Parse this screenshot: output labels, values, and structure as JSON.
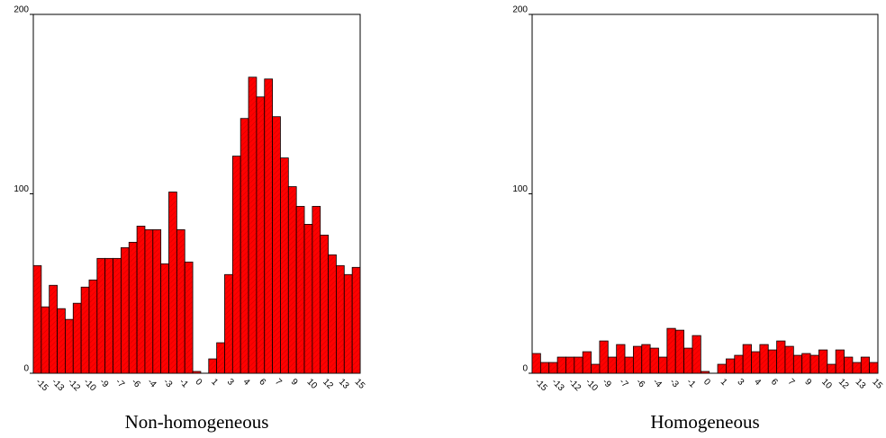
{
  "chart_data": [
    {
      "type": "bar",
      "title": "Non-homogeneous",
      "color": "#ff0000",
      "categories": [
        "-15",
        null,
        "-13",
        null,
        "-12",
        null,
        "-10",
        null,
        "-9",
        null,
        "-7",
        null,
        "-6",
        null,
        "-4",
        null,
        "-3",
        null,
        "-1",
        null,
        "0",
        null,
        "1",
        null,
        "3",
        null,
        "4",
        null,
        "6",
        null,
        "7",
        null,
        "9",
        null,
        "10",
        null,
        "12",
        null,
        "13",
        null,
        "15"
      ],
      "values": [
        60,
        37,
        49,
        36,
        30,
        39,
        48,
        52,
        64,
        64,
        64,
        70,
        73,
        82,
        80,
        80,
        61,
        101,
        80,
        62,
        1,
        0,
        8,
        17,
        55,
        121,
        142,
        165,
        154,
        164,
        143,
        120,
        104,
        93,
        83,
        93,
        77,
        66,
        60,
        55,
        59
      ],
      "ylim": [
        0,
        200
      ],
      "yticks": [
        0,
        100,
        200
      ]
    },
    {
      "type": "bar",
      "title": "Homogeneous",
      "color": "#ff0000",
      "categories": [
        "-15",
        null,
        "-13",
        null,
        "-12",
        null,
        "-10",
        null,
        "-9",
        null,
        "-7",
        null,
        "-6",
        null,
        "-4",
        null,
        "-3",
        null,
        "-1",
        null,
        "0",
        null,
        "1",
        null,
        "3",
        null,
        "4",
        null,
        "6",
        null,
        "7",
        null,
        "9",
        null,
        "10",
        null,
        "12",
        null,
        "13",
        null,
        "15"
      ],
      "values": [
        11,
        6,
        6,
        9,
        9,
        9,
        12,
        5,
        18,
        9,
        16,
        9,
        15,
        16,
        14,
        9,
        25,
        24,
        14,
        21,
        1,
        0,
        5,
        8,
        10,
        16,
        12,
        16,
        13,
        18,
        15,
        10,
        11,
        10,
        13,
        5,
        13,
        9,
        6,
        9,
        6
      ],
      "ylim": [
        0,
        200
      ],
      "yticks": [
        0,
        100,
        200
      ]
    }
  ]
}
